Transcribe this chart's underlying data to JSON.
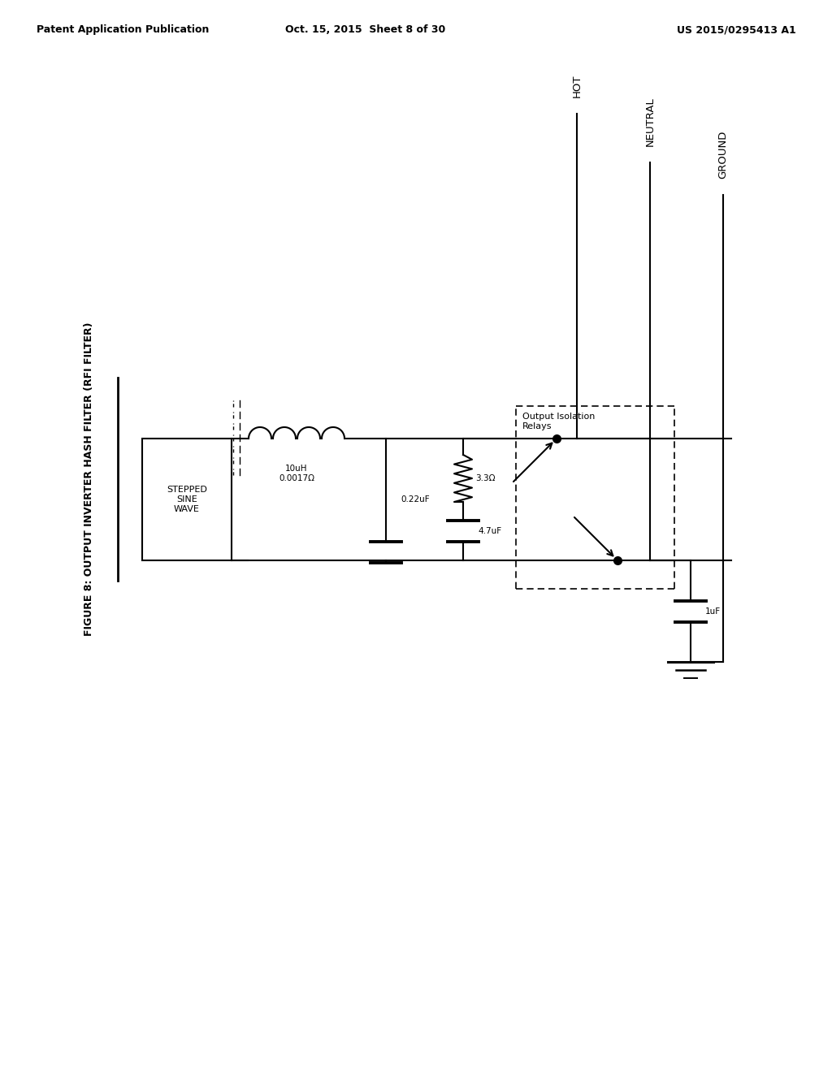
{
  "bg_color": "#ffffff",
  "line_color": "#000000",
  "header_left": "Patent Application Publication",
  "header_center": "Oct. 15, 2015  Sheet 8 of 30",
  "header_right": "US 2015/0295413 A1",
  "figure_title": "FIGURE 8: OUTPUT INVERTER HASH FILTER (RFI FILTER)",
  "label_hot": "HOT",
  "label_neutral": "NEUTRAL",
  "label_ground": "GROUND",
  "label_stepped": "STEPPED\nSINE\nWAVE",
  "label_inductor": "10uH\n0.0017Ω",
  "label_cap1": "0.22uF",
  "label_resistor": "3.3Ω",
  "label_cap2": "4.7uF",
  "label_cap3": "1uF",
  "label_relay": "Output Isolation\nRelays"
}
